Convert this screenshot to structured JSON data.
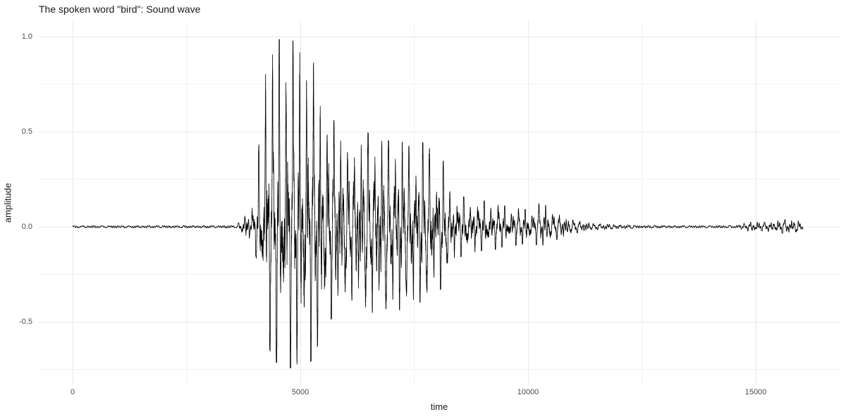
{
  "chart_data": {
    "type": "line",
    "title": "The spoken word \"bird\": Sound wave",
    "xlabel": "time",
    "ylabel": "amplitude",
    "xlim": [
      -750,
      16850
    ],
    "ylim": [
      -0.83,
      1.08
    ],
    "grid": "major+minor, no panel border, no tick marks",
    "legend": "none",
    "xticks": [
      {
        "value": 0,
        "label": "0"
      },
      {
        "value": 5000,
        "label": "5000"
      },
      {
        "value": 10000,
        "label": "10000"
      },
      {
        "value": 15000,
        "label": "15000"
      }
    ],
    "xticks_minor": [
      2500,
      7500,
      12500
    ],
    "yticks": [
      {
        "value": 1.0,
        "label": "1.0"
      },
      {
        "value": 0.5,
        "label": "0.5"
      },
      {
        "value": 0.0,
        "label": "0.0"
      },
      {
        "value": -0.5,
        "label": "-0.5"
      }
    ],
    "yticks_minor": [
      0.75,
      0.25,
      -0.25,
      -0.75
    ],
    "series": [
      {
        "name": "sound wave",
        "color": "#000000",
        "n_samples": 16040,
        "pulse_period_samples": 150,
        "envelope_points": {
          "columns": [
            "time",
            "min_amplitude",
            "max_amplitude",
            "body_amplitude"
          ],
          "rows": [
            [
              0,
              -0.005,
              0.005,
              0.003
            ],
            [
              3600,
              -0.006,
              0.006,
              0.004
            ],
            [
              3760,
              -0.06,
              0.06,
              0.035
            ],
            [
              3830,
              -0.11,
              0.11,
              0.05
            ],
            [
              3910,
              -0.05,
              0.06,
              0.03
            ],
            [
              4030,
              -0.16,
              0.3,
              0.1
            ],
            [
              4130,
              -0.3,
              0.52,
              0.16
            ],
            [
              4240,
              -0.55,
              0.97,
              0.3
            ],
            [
              4360,
              -0.68,
              1.0,
              0.33
            ],
            [
              4500,
              -0.72,
              0.98,
              0.34
            ],
            [
              4650,
              -0.76,
              1.0,
              0.35
            ],
            [
              4800,
              -0.74,
              0.97,
              0.35
            ],
            [
              4950,
              -0.72,
              1.0,
              0.34
            ],
            [
              5100,
              -0.76,
              0.97,
              0.34
            ],
            [
              5250,
              -0.7,
              0.99,
              0.33
            ],
            [
              5340,
              -0.66,
              0.97,
              0.32
            ],
            [
              5430,
              -0.58,
              0.64,
              0.3
            ],
            [
              5550,
              -0.52,
              0.62,
              0.28
            ],
            [
              5700,
              -0.48,
              0.58,
              0.26
            ],
            [
              5850,
              -0.44,
              0.5,
              0.24
            ],
            [
              6000,
              -0.4,
              0.44,
              0.22
            ],
            [
              6200,
              -0.38,
              0.4,
              0.2
            ],
            [
              6400,
              -0.44,
              0.52,
              0.23
            ],
            [
              6600,
              -0.46,
              0.46,
              0.22
            ],
            [
              6800,
              -0.44,
              0.48,
              0.22
            ],
            [
              7000,
              -0.42,
              0.44,
              0.21
            ],
            [
              7200,
              -0.44,
              0.46,
              0.21
            ],
            [
              7400,
              -0.42,
              0.44,
              0.2
            ],
            [
              7600,
              -0.4,
              0.46,
              0.2
            ],
            [
              7800,
              -0.38,
              0.42,
              0.19
            ],
            [
              8000,
              -0.36,
              0.4,
              0.18
            ],
            [
              8150,
              -0.3,
              0.34,
              0.15
            ],
            [
              8300,
              -0.18,
              0.2,
              0.1
            ],
            [
              8500,
              -0.16,
              0.17,
              0.09
            ],
            [
              8700,
              -0.14,
              0.14,
              0.08
            ],
            [
              8900,
              -0.13,
              0.15,
              0.08
            ],
            [
              9100,
              -0.12,
              0.13,
              0.07
            ],
            [
              9300,
              -0.12,
              0.12,
              0.07
            ],
            [
              9500,
              -0.1,
              0.11,
              0.06
            ],
            [
              9700,
              -0.1,
              0.1,
              0.06
            ],
            [
              9900,
              -0.09,
              0.09,
              0.05
            ],
            [
              10100,
              -0.09,
              0.1,
              0.05
            ],
            [
              10300,
              -0.1,
              0.13,
              0.06
            ],
            [
              10500,
              -0.08,
              0.09,
              0.05
            ],
            [
              10700,
              -0.06,
              0.06,
              0.04
            ],
            [
              11000,
              -0.035,
              0.035,
              0.022
            ],
            [
              11400,
              -0.018,
              0.018,
              0.012
            ],
            [
              11800,
              -0.012,
              0.012,
              0.008
            ],
            [
              12300,
              -0.008,
              0.008,
              0.005
            ],
            [
              13000,
              -0.006,
              0.006,
              0.004
            ],
            [
              14000,
              -0.005,
              0.005,
              0.003
            ],
            [
              14600,
              -0.006,
              0.006,
              0.004
            ],
            [
              14780,
              -0.02,
              0.02,
              0.012
            ],
            [
              14950,
              -0.032,
              0.028,
              0.018
            ],
            [
              15100,
              -0.02,
              0.022,
              0.014
            ],
            [
              15250,
              -0.025,
              0.025,
              0.016
            ],
            [
              15450,
              -0.032,
              0.03,
              0.02
            ],
            [
              15650,
              -0.035,
              0.038,
              0.022
            ],
            [
              15850,
              -0.034,
              0.034,
              0.022
            ],
            [
              15970,
              -0.028,
              0.028,
              0.018
            ],
            [
              16040,
              -0.01,
              0.01,
              0.006
            ]
          ]
        }
      }
    ]
  },
  "colors": {
    "background": "#ffffff",
    "waveform": "#000000",
    "grid_major": "#e8e8e8",
    "grid_minor": "#f2f2f2",
    "tick_label": "#4d4d4d",
    "axis_title": "#1a1a1a",
    "title": "#1a1a1a"
  }
}
